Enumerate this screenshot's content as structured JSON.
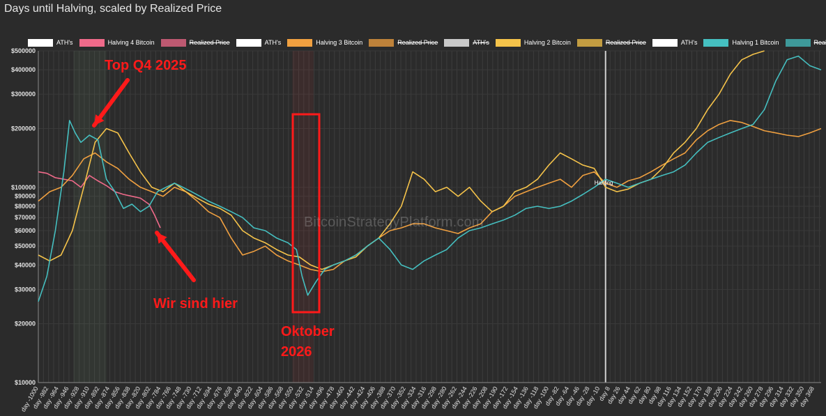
{
  "title": "Days until Halving, scaled by Realized Price",
  "watermark": "BitcoinStrategyPlatform.com",
  "legend": [
    {
      "label": "ATH's",
      "color": "#ffffff",
      "hidden": false
    },
    {
      "label": "Halving 4 Bitcoin",
      "color": "#f06a8a",
      "hidden": false
    },
    {
      "label": "Realized Price",
      "color": "#f06a8a",
      "hidden": true
    },
    {
      "label": "ATH's",
      "color": "#ffffff",
      "hidden": false
    },
    {
      "label": "Halving 3 Bitcoin",
      "color": "#f0a040",
      "hidden": false
    },
    {
      "label": "Realized Price",
      "color": "#f0a040",
      "hidden": true
    },
    {
      "label": "ATH's",
      "color": "#ffffff",
      "hidden": true
    },
    {
      "label": "Halving 2 Bitcoin",
      "color": "#f5c34a",
      "hidden": false
    },
    {
      "label": "Realized Price",
      "color": "#f5c34a",
      "hidden": true
    },
    {
      "label": "ATH's",
      "color": "#ffffff",
      "hidden": false
    },
    {
      "label": "Halving 1 Bitcoin",
      "color": "#45bfc0",
      "hidden": false
    },
    {
      "label": "Realized Price",
      "color": "#45bfc0",
      "hidden": true
    }
  ],
  "annotations": {
    "top": "Top Q4 2025",
    "here": "Wir sind hier",
    "october_line1": "Oktober",
    "october_line2": "2026",
    "halving_marker": "Halving"
  },
  "chart_data": {
    "type": "line",
    "title": "Days until Halving, scaled by Realized Price",
    "ylabel": "",
    "yscale": "log",
    "ylim": [
      10000,
      500000
    ],
    "y_ticks": [
      {
        "v": 500000,
        "label": "$500000"
      },
      {
        "v": 400000,
        "label": "$400000"
      },
      {
        "v": 300000,
        "label": "$300000"
      },
      {
        "v": 200000,
        "label": "$200000"
      },
      {
        "v": 100000,
        "label": "$100000"
      },
      {
        "v": 90000,
        "label": "$90000"
      },
      {
        "v": 80000,
        "label": "$80000"
      },
      {
        "v": 70000,
        "label": "$70000"
      },
      {
        "v": 60000,
        "label": "$60000"
      },
      {
        "v": 50000,
        "label": "$50000"
      },
      {
        "v": 40000,
        "label": "$40000"
      },
      {
        "v": 30000,
        "label": "$30000"
      },
      {
        "v": 20000,
        "label": "$20000"
      },
      {
        "v": 10000,
        "label": "$10000"
      }
    ],
    "xlim": [
      -1000,
      380
    ],
    "x_tick_start": -1000,
    "x_tick_step": 18,
    "x_tick_end": 369,
    "halving_day": 0,
    "series": [
      {
        "name": "Halving 4 Bitcoin",
        "color": "#f06a8a",
        "x": [
          -1000,
          -985,
          -970,
          -955,
          -940,
          -925,
          -910,
          -895,
          -880,
          -865,
          -850,
          -835,
          -820,
          -805,
          -795,
          -785
        ],
        "y": [
          120000,
          118000,
          112000,
          110000,
          108000,
          100000,
          115000,
          108000,
          102000,
          95000,
          92000,
          90000,
          88000,
          82000,
          72000,
          62000
        ]
      },
      {
        "name": "Halving 3 Bitcoin",
        "color": "#f0a040",
        "x": [
          -1000,
          -980,
          -960,
          -940,
          -920,
          -900,
          -880,
          -860,
          -840,
          -820,
          -800,
          -780,
          -760,
          -740,
          -720,
          -700,
          -680,
          -660,
          -640,
          -620,
          -600,
          -580,
          -560,
          -540,
          -520,
          -500,
          -480,
          -460,
          -440,
          -420,
          -400,
          -380,
          -360,
          -340,
          -320,
          -300,
          -280,
          -260,
          -240,
          -220,
          -200,
          -180,
          -160,
          -140,
          -120,
          -100,
          -80,
          -60,
          -40,
          -20,
          0,
          20,
          40,
          60,
          80,
          100,
          120,
          140,
          160,
          180,
          200,
          220,
          240,
          260,
          280,
          300,
          320,
          340,
          360,
          380
        ],
        "y": [
          85000,
          95000,
          100000,
          115000,
          140000,
          150000,
          135000,
          125000,
          110000,
          100000,
          95000,
          90000,
          100000,
          95000,
          85000,
          75000,
          70000,
          55000,
          45000,
          47000,
          50000,
          45000,
          42000,
          40000,
          38000,
          37000,
          38000,
          42000,
          45000,
          50000,
          55000,
          60000,
          62000,
          65000,
          65000,
          62000,
          60000,
          58000,
          62000,
          65000,
          75000,
          80000,
          90000,
          95000,
          100000,
          105000,
          110000,
          100000,
          115000,
          120000,
          105000,
          100000,
          108000,
          112000,
          120000,
          130000,
          140000,
          150000,
          175000,
          195000,
          210000,
          220000,
          215000,
          205000,
          195000,
          190000,
          185000,
          182000,
          190000,
          200000
        ]
      },
      {
        "name": "Halving 2 Bitcoin",
        "color": "#f5c34a",
        "x": [
          -1000,
          -980,
          -960,
          -940,
          -920,
          -900,
          -880,
          -860,
          -840,
          -820,
          -800,
          -780,
          -760,
          -740,
          -720,
          -700,
          -680,
          -660,
          -640,
          -620,
          -600,
          -580,
          -560,
          -540,
          -520,
          -500,
          -480,
          -460,
          -440,
          -420,
          -400,
          -380,
          -360,
          -340,
          -320,
          -300,
          -280,
          -260,
          -240,
          -220,
          -200,
          -180,
          -160,
          -140,
          -120,
          -100,
          -80,
          -60,
          -40,
          -20,
          0,
          20,
          40,
          60,
          80,
          100,
          120,
          140,
          160,
          180,
          200,
          220,
          240,
          260,
          280
        ],
        "y": [
          45000,
          42000,
          45000,
          60000,
          100000,
          170000,
          200000,
          190000,
          150000,
          120000,
          100000,
          95000,
          105000,
          95000,
          88000,
          82000,
          78000,
          72000,
          60000,
          55000,
          52000,
          48000,
          45000,
          44000,
          40000,
          38000,
          40000,
          42000,
          44000,
          50000,
          55000,
          65000,
          80000,
          120000,
          110000,
          95000,
          100000,
          90000,
          100000,
          85000,
          75000,
          80000,
          95000,
          100000,
          110000,
          130000,
          150000,
          140000,
          130000,
          125000,
          100000,
          95000,
          98000,
          105000,
          110000,
          125000,
          150000,
          170000,
          200000,
          250000,
          300000,
          380000,
          450000,
          480000,
          500000
        ]
      },
      {
        "name": "Halving 1 Bitcoin",
        "color": "#45bfc0",
        "x": [
          -1000,
          -985,
          -970,
          -955,
          -945,
          -935,
          -925,
          -910,
          -895,
          -880,
          -865,
          -850,
          -835,
          -820,
          -805,
          -790,
          -775,
          -760,
          -745,
          -730,
          -715,
          -700,
          -680,
          -660,
          -640,
          -620,
          -600,
          -580,
          -560,
          -545,
          -535,
          -525,
          -510,
          -495,
          -480,
          -460,
          -440,
          -420,
          -400,
          -380,
          -360,
          -340,
          -320,
          -300,
          -280,
          -260,
          -240,
          -220,
          -200,
          -180,
          -160,
          -140,
          -120,
          -100,
          -80,
          -60,
          -40,
          -20,
          0,
          20,
          40,
          60,
          80,
          100,
          120,
          140,
          160,
          180,
          200,
          220,
          240,
          260,
          280,
          300,
          320,
          340,
          360,
          380
        ],
        "y": [
          26000,
          35000,
          60000,
          120000,
          220000,
          190000,
          170000,
          185000,
          175000,
          110000,
          95000,
          78000,
          82000,
          75000,
          80000,
          95000,
          100000,
          105000,
          100000,
          95000,
          90000,
          85000,
          80000,
          75000,
          70000,
          62000,
          60000,
          55000,
          52000,
          48000,
          35000,
          28000,
          33000,
          38000,
          40000,
          42000,
          45000,
          50000,
          55000,
          48000,
          40000,
          38000,
          42000,
          45000,
          48000,
          55000,
          60000,
          62000,
          65000,
          68000,
          72000,
          78000,
          80000,
          78000,
          80000,
          85000,
          92000,
          100000,
          110000,
          105000,
          100000,
          105000,
          110000,
          115000,
          120000,
          130000,
          150000,
          170000,
          180000,
          190000,
          200000,
          210000,
          250000,
          350000,
          450000,
          470000,
          420000,
          400000
        ]
      }
    ]
  }
}
